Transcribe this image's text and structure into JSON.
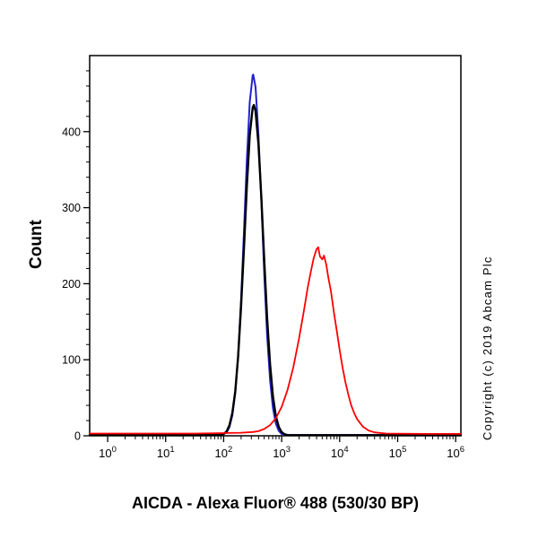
{
  "figure": {
    "title": "AICDA - Alexa Fluor® 488 (530/30 BP)",
    "ylabel": "Count",
    "copyright": "Copyright (c) 2019 Abcam Plc",
    "background_color": "#ffffff",
    "axis_color": "#000000"
  },
  "chart_data": {
    "type": "line",
    "subtype": "flow-cytometry-histogram-overlay",
    "title": "AICDA - Alexa Fluor® 488 (530/30 BP)",
    "xlabel": "",
    "ylabel": "Count",
    "x_scale": "log10",
    "xlim_log10": [
      -0.31,
      6.09
    ],
    "ylim": [
      0,
      500
    ],
    "x_tick_base": "10",
    "x_major_tick_exponents": [
      0,
      1,
      2,
      3,
      4,
      5,
      6
    ],
    "x_minor_multipliers": [
      2,
      3,
      4,
      5,
      6,
      7,
      8,
      9
    ],
    "y_major_ticks": [
      0,
      100,
      200,
      300,
      400
    ],
    "y_minor_tick_step": 20,
    "grid": false,
    "legend": null,
    "axis_color": "#000000",
    "series": [
      {
        "name": "blue",
        "color": "#2222cc",
        "stroke_width": 2.0,
        "peak_x_log10": 2.51,
        "peak_count": 475,
        "points": [
          [
            -0.31,
            1.5
          ],
          [
            0.5,
            1.5
          ],
          [
            1.0,
            1.5
          ],
          [
            1.5,
            1.5
          ],
          [
            1.8,
            1.8
          ],
          [
            1.9,
            2.2
          ],
          [
            1.95,
            2.5
          ],
          [
            2.0,
            3
          ],
          [
            2.05,
            4.3
          ],
          [
            2.1,
            11.4
          ],
          [
            2.15,
            26.6
          ],
          [
            2.2,
            56.1
          ],
          [
            2.25,
            105.7
          ],
          [
            2.3,
            178.3
          ],
          [
            2.35,
            268.9
          ],
          [
            2.4,
            363
          ],
          [
            2.45,
            438.5
          ],
          [
            2.5,
            473.9
          ],
          [
            2.51,
            475
          ],
          [
            2.55,
            458.5
          ],
          [
            2.6,
            396.7
          ],
          [
            2.65,
            307.2
          ],
          [
            2.7,
            213
          ],
          [
            2.75,
            132.1
          ],
          [
            2.8,
            73.3
          ],
          [
            2.85,
            36.4
          ],
          [
            2.9,
            16.2
          ],
          [
            2.95,
            6.4
          ],
          [
            3.0,
            2.5
          ],
          [
            3.05,
            1.5
          ],
          [
            3.1,
            1.2
          ],
          [
            3.3,
            1.1
          ],
          [
            3.7,
            1.1
          ],
          [
            4.2,
            1.1
          ],
          [
            5.0,
            1.1
          ],
          [
            6.09,
            1.1
          ]
        ]
      },
      {
        "name": "black",
        "color": "#000000",
        "stroke_width": 2.4,
        "peak_x_log10": 2.52,
        "peak_count": 435,
        "points": [
          [
            -0.31,
            1
          ],
          [
            0.5,
            1
          ],
          [
            1.0,
            1
          ],
          [
            1.5,
            1
          ],
          [
            1.8,
            1.2
          ],
          [
            1.9,
            1.5
          ],
          [
            1.95,
            1.8
          ],
          [
            2.0,
            2.2
          ],
          [
            2.05,
            5.8
          ],
          [
            2.1,
            13.9
          ],
          [
            2.15,
            29.9
          ],
          [
            2.2,
            58.9
          ],
          [
            2.25,
            104.7
          ],
          [
            2.3,
            169
          ],
          [
            2.35,
            247
          ],
          [
            2.4,
            328
          ],
          [
            2.45,
            395
          ],
          [
            2.5,
            431.6
          ],
          [
            2.52,
            435
          ],
          [
            2.55,
            427
          ],
          [
            2.6,
            384
          ],
          [
            2.65,
            312.7
          ],
          [
            2.7,
            231
          ],
          [
            2.75,
            154.8
          ],
          [
            2.8,
            94
          ],
          [
            2.85,
            51.8
          ],
          [
            2.9,
            25.9
          ],
          [
            2.95,
            11.7
          ],
          [
            3.0,
            4.8
          ],
          [
            3.05,
            2.0
          ],
          [
            3.1,
            1.0
          ],
          [
            3.2,
            0.8
          ],
          [
            3.5,
            0.8
          ],
          [
            4.0,
            0.8
          ],
          [
            4.5,
            0.8
          ],
          [
            5.0,
            0.8
          ],
          [
            6.09,
            0.8
          ]
        ]
      },
      {
        "name": "red",
        "color": "#ff0000",
        "stroke_width": 1.8,
        "peak_x_log10": 3.63,
        "peak_count": 248,
        "points": [
          [
            -0.31,
            3
          ],
          [
            0.5,
            3
          ],
          [
            1.0,
            3
          ],
          [
            1.5,
            3
          ],
          [
            2.0,
            3.5
          ],
          [
            2.3,
            4
          ],
          [
            2.5,
            5
          ],
          [
            2.6,
            6
          ],
          [
            2.7,
            9
          ],
          [
            2.8,
            14
          ],
          [
            2.9,
            23
          ],
          [
            3.0,
            38
          ],
          [
            3.1,
            60
          ],
          [
            3.2,
            90
          ],
          [
            3.3,
            128
          ],
          [
            3.38,
            163
          ],
          [
            3.45,
            195
          ],
          [
            3.5,
            215
          ],
          [
            3.55,
            233
          ],
          [
            3.6,
            245
          ],
          [
            3.63,
            248
          ],
          [
            3.66,
            236
          ],
          [
            3.7,
            232
          ],
          [
            3.73,
            237
          ],
          [
            3.77,
            225
          ],
          [
            3.8,
            210
          ],
          [
            3.85,
            190
          ],
          [
            3.9,
            163
          ],
          [
            3.95,
            138
          ],
          [
            4.0,
            113
          ],
          [
            4.05,
            90
          ],
          [
            4.1,
            70
          ],
          [
            4.15,
            54
          ],
          [
            4.2,
            40
          ],
          [
            4.25,
            30
          ],
          [
            4.3,
            22
          ],
          [
            4.4,
            12
          ],
          [
            4.5,
            7
          ],
          [
            4.6,
            4.5
          ],
          [
            4.8,
            3
          ],
          [
            5.0,
            2.8
          ],
          [
            5.5,
            2.5
          ],
          [
            6.09,
            2.5
          ]
        ]
      }
    ]
  }
}
